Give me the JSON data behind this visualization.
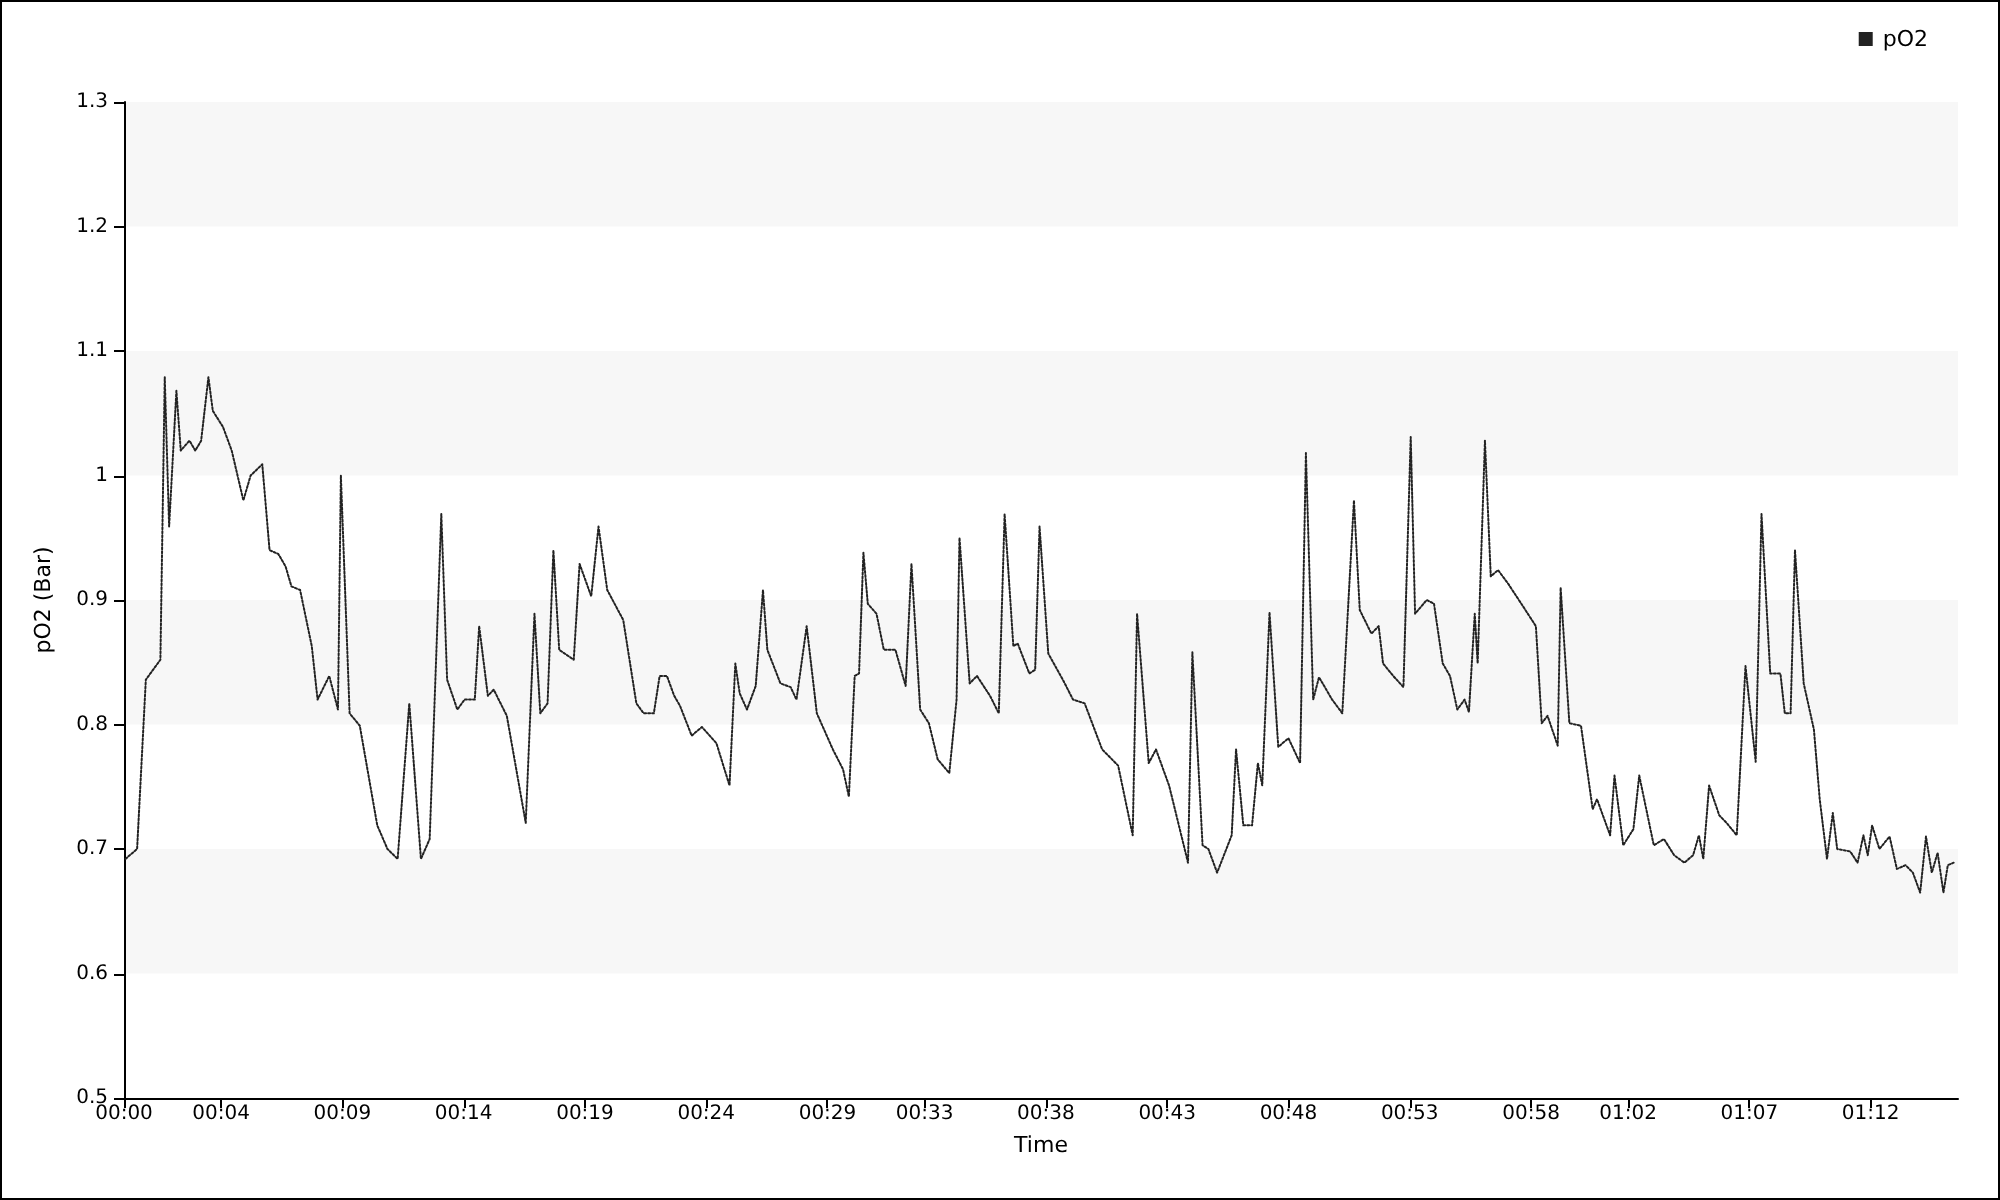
{
  "chart_data": {
    "type": "line",
    "xlabel": "Time",
    "ylabel": "pO2 (Bar)",
    "xlim": [
      0,
      1.26
    ],
    "ylim": [
      0.5,
      1.3
    ],
    "xticks": [
      {
        "value": 0,
        "label": "00:00"
      },
      {
        "value": 0.0667,
        "label": "00:04"
      },
      {
        "value": 0.15,
        "label": "00:09"
      },
      {
        "value": 0.2333,
        "label": "00:14"
      },
      {
        "value": 0.3167,
        "label": "00:19"
      },
      {
        "value": 0.4,
        "label": "00:24"
      },
      {
        "value": 0.4833,
        "label": "00:29"
      },
      {
        "value": 0.55,
        "label": "00:33"
      },
      {
        "value": 0.6333,
        "label": "00:38"
      },
      {
        "value": 0.7167,
        "label": "00:43"
      },
      {
        "value": 0.8,
        "label": "00:48"
      },
      {
        "value": 0.8833,
        "label": "00:53"
      },
      {
        "value": 0.9667,
        "label": "00:58"
      },
      {
        "value": 1.0333,
        "label": "01:02"
      },
      {
        "value": 1.1167,
        "label": "01:07"
      },
      {
        "value": 1.2,
        "label": "01:12"
      }
    ],
    "yticks": [
      0.5,
      0.6,
      0.7,
      0.8,
      0.9,
      1,
      1.1,
      1.2,
      1.3
    ],
    "bands": [
      {
        "axis": "y",
        "from": 0.6,
        "to": 0.7,
        "color": "#f7f7f7"
      },
      {
        "axis": "y",
        "from": 0.8,
        "to": 0.9,
        "color": "#f7f7f7"
      },
      {
        "axis": "y",
        "from": 1.0,
        "to": 1.1,
        "color": "#f7f7f7"
      },
      {
        "axis": "y",
        "from": 1.2,
        "to": 1.3,
        "color": "#f7f7f7"
      }
    ],
    "grid": false,
    "legend": "top right",
    "marker": "none",
    "line_style": "dotted",
    "series": [
      {
        "name": "pO2",
        "color": "#222222",
        "x": [
          0.001,
          0.009,
          0.015,
          0.025,
          0.028,
          0.031,
          0.036,
          0.039,
          0.045,
          0.049,
          0.053,
          0.058,
          0.061,
          0.068,
          0.074,
          0.082,
          0.087,
          0.095,
          0.1,
          0.106,
          0.111,
          0.115,
          0.121,
          0.129,
          0.133,
          0.141,
          0.147,
          0.149,
          0.155,
          0.162,
          0.174,
          0.181,
          0.188,
          0.196,
          0.204,
          0.21,
          0.218,
          0.222,
          0.229,
          0.234,
          0.241,
          0.244,
          0.25,
          0.254,
          0.263,
          0.276,
          0.282,
          0.286,
          0.291,
          0.295,
          0.299,
          0.309,
          0.313,
          0.321,
          0.326,
          0.332,
          0.343,
          0.352,
          0.357,
          0.364,
          0.368,
          0.373,
          0.378,
          0.382,
          0.39,
          0.397,
          0.407,
          0.416,
          0.42,
          0.423,
          0.428,
          0.434,
          0.439,
          0.442,
          0.451,
          0.458,
          0.462,
          0.469,
          0.476,
          0.487,
          0.494,
          0.498,
          0.502,
          0.505,
          0.508,
          0.511,
          0.517,
          0.522,
          0.53,
          0.537,
          0.541,
          0.547,
          0.553,
          0.559,
          0.567,
          0.572,
          0.574,
          0.581,
          0.586,
          0.595,
          0.601,
          0.605,
          0.611,
          0.614,
          0.622,
          0.626,
          0.629,
          0.635,
          0.645,
          0.652,
          0.66,
          0.672,
          0.683,
          0.693,
          0.696,
          0.704,
          0.709,
          0.718,
          0.731,
          0.734,
          0.741,
          0.745,
          0.751,
          0.761,
          0.764,
          0.769,
          0.775,
          0.779,
          0.782,
          0.787,
          0.793,
          0.8,
          0.808,
          0.812,
          0.817,
          0.821,
          0.83,
          0.837,
          0.845,
          0.849,
          0.857,
          0.862,
          0.865,
          0.872,
          0.879,
          0.884,
          0.887,
          0.895,
          0.9,
          0.906,
          0.911,
          0.916,
          0.921,
          0.924,
          0.928,
          0.93,
          0.935,
          0.939,
          0.944,
          0.951,
          0.96,
          0.97,
          0.974,
          0.978,
          0.985,
          0.987,
          0.993,
          1.001,
          1.009,
          1.012,
          1.021,
          1.024,
          1.03,
          1.037,
          1.041,
          1.051,
          1.058,
          1.065,
          1.072,
          1.078,
          1.082,
          1.085,
          1.089,
          1.096,
          1.101,
          1.108,
          1.114,
          1.121,
          1.125,
          1.131,
          1.138,
          1.141,
          1.145,
          1.148,
          1.154,
          1.161,
          1.165,
          1.17,
          1.174,
          1.177,
          1.186,
          1.191,
          1.195,
          1.198,
          1.201,
          1.206,
          1.213,
          1.218,
          1.224,
          1.229,
          1.234,
          1.238,
          1.242,
          1.246,
          1.25,
          1.253,
          1.257
        ],
        "values": [
          0.692,
          0.7,
          0.836,
          0.852,
          1.079,
          0.959,
          1.068,
          1.02,
          1.028,
          1.02,
          1.028,
          1.079,
          1.052,
          1.039,
          1.02,
          0.98,
          1.0,
          1.009,
          0.94,
          0.937,
          0.927,
          0.911,
          0.908,
          0.863,
          0.82,
          0.839,
          0.812,
          1.0,
          0.809,
          0.799,
          0.719,
          0.7,
          0.692,
          0.817,
          0.692,
          0.708,
          0.969,
          0.836,
          0.812,
          0.82,
          0.82,
          0.879,
          0.823,
          0.828,
          0.807,
          0.721,
          0.889,
          0.809,
          0.817,
          0.94,
          0.86,
          0.852,
          0.929,
          0.903,
          0.959,
          0.908,
          0.884,
          0.817,
          0.809,
          0.809,
          0.839,
          0.839,
          0.823,
          0.815,
          0.791,
          0.798,
          0.785,
          0.751,
          0.849,
          0.825,
          0.812,
          0.831,
          0.908,
          0.86,
          0.833,
          0.83,
          0.82,
          0.879,
          0.809,
          0.78,
          0.764,
          0.742,
          0.839,
          0.841,
          0.938,
          0.897,
          0.889,
          0.86,
          0.86,
          0.831,
          0.929,
          0.812,
          0.801,
          0.772,
          0.761,
          0.82,
          0.95,
          0.833,
          0.839,
          0.823,
          0.809,
          0.969,
          0.863,
          0.865,
          0.841,
          0.844,
          0.959,
          0.857,
          0.836,
          0.82,
          0.817,
          0.78,
          0.767,
          0.711,
          0.889,
          0.769,
          0.78,
          0.751,
          0.689,
          0.858,
          0.703,
          0.7,
          0.681,
          0.711,
          0.78,
          0.719,
          0.719,
          0.769,
          0.751,
          0.89,
          0.782,
          0.789,
          0.769,
          1.018,
          0.82,
          0.838,
          0.82,
          0.809,
          0.98,
          0.892,
          0.873,
          0.879,
          0.849,
          0.839,
          0.83,
          1.031,
          0.889,
          0.9,
          0.897,
          0.849,
          0.839,
          0.812,
          0.82,
          0.81,
          0.889,
          0.849,
          1.028,
          0.919,
          0.924,
          0.913,
          0.897,
          0.879,
          0.801,
          0.807,
          0.783,
          0.91,
          0.801,
          0.799,
          0.732,
          0.74,
          0.711,
          0.759,
          0.703,
          0.716,
          0.759,
          0.703,
          0.708,
          0.695,
          0.689,
          0.695,
          0.711,
          0.692,
          0.751,
          0.727,
          0.721,
          0.711,
          0.847,
          0.77,
          0.969,
          0.841,
          0.841,
          0.809,
          0.809,
          0.94,
          0.833,
          0.796,
          0.74,
          0.692,
          0.729,
          0.7,
          0.698,
          0.689,
          0.711,
          0.695,
          0.719,
          0.7,
          0.71,
          0.684,
          0.687,
          0.681,
          0.665,
          0.71,
          0.681,
          0.697,
          0.665,
          0.687,
          0.689
        ]
      }
    ]
  }
}
